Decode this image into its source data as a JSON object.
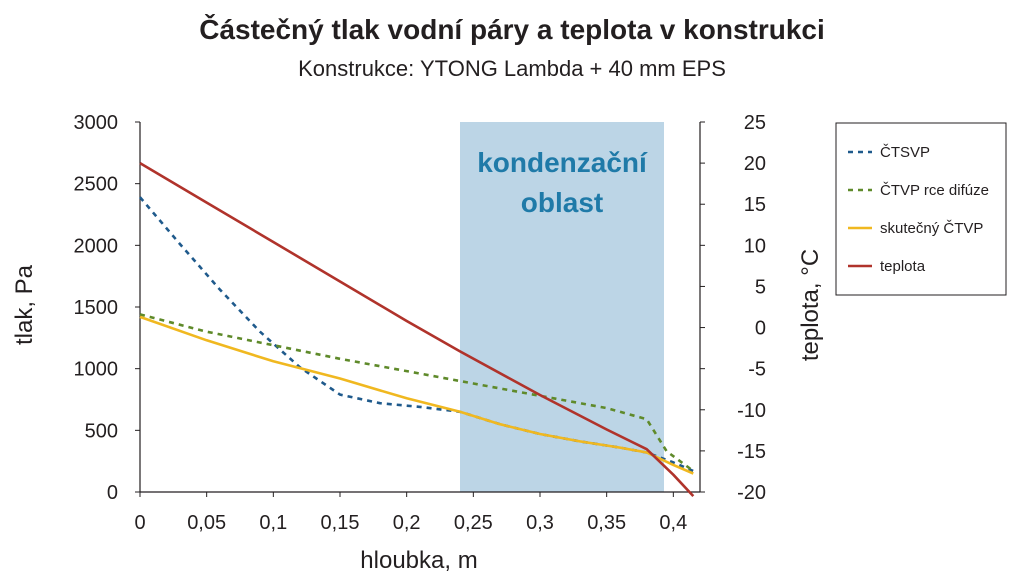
{
  "chart_data": {
    "type": "line",
    "title": "Částečný tlak vodní páry a teplota v konstrukci",
    "subtitle": "Konstrukce: YTONG Lambda + 40 mm EPS",
    "xlabel": "hloubka, m",
    "ylabel_left": "tlak, Pa",
    "ylabel_right": "teplota, °C",
    "xlim": [
      0,
      0.42
    ],
    "ylim_left": [
      0,
      3000
    ],
    "ylim_right": [
      -20,
      25
    ],
    "x_ticks": [
      "0",
      "0,05",
      "0,1",
      "0,15",
      "0,2",
      "0,25",
      "0,3",
      "0,35",
      "0,4"
    ],
    "x_tick_values": [
      0,
      0.05,
      0.1,
      0.15,
      0.2,
      0.25,
      0.3,
      0.35,
      0.4
    ],
    "y_left_ticks": [
      "3000",
      "2500",
      "2000",
      "1500",
      "1000",
      "500",
      "0"
    ],
    "y_left_tick_values": [
      3000,
      2500,
      2000,
      1500,
      1000,
      500,
      0
    ],
    "y_right_ticks": [
      "25",
      "20",
      "15",
      "10",
      "5",
      "0",
      "-5",
      "-10",
      "-15",
      "-20"
    ],
    "y_right_tick_values": [
      25,
      20,
      15,
      10,
      5,
      0,
      -5,
      -10,
      -15,
      -20
    ],
    "grid": false,
    "legend_position": "right",
    "shaded_region": {
      "x_start": 0.24,
      "x_end": 0.393,
      "label_line1": "kondenzační",
      "label_line2": "oblast",
      "color": "#bcd5e6"
    },
    "series": [
      {
        "name": "ČTSVP",
        "axis": "left",
        "style": "dashed",
        "color": "#1f5a8c",
        "x": [
          0,
          0.03,
          0.06,
          0.09,
          0.12,
          0.15,
          0.18,
          0.21,
          0.24,
          0.27,
          0.3,
          0.33,
          0.36,
          0.38,
          0.4,
          0.415
        ],
        "y": [
          2390,
          2010,
          1640,
          1300,
          1010,
          790,
          720,
          690,
          650,
          550,
          470,
          410,
          360,
          320,
          240,
          170
        ]
      },
      {
        "name": "ČTVP rce difúze",
        "axis": "left",
        "style": "dashed",
        "color": "#5f8a2a",
        "x": [
          0,
          0.05,
          0.1,
          0.15,
          0.2,
          0.25,
          0.3,
          0.35,
          0.38,
          0.395,
          0.415
        ],
        "y": [
          1440,
          1300,
          1190,
          1080,
          980,
          880,
          780,
          680,
          590,
          330,
          170
        ]
      },
      {
        "name": "skutečný ČTVP",
        "axis": "left",
        "style": "solid",
        "color": "#f0b820",
        "x": [
          0,
          0.05,
          0.1,
          0.15,
          0.2,
          0.24,
          0.27,
          0.3,
          0.33,
          0.36,
          0.38,
          0.4,
          0.415
        ],
        "y": [
          1420,
          1230,
          1060,
          920,
          760,
          650,
          550,
          470,
          410,
          360,
          320,
          220,
          150
        ]
      },
      {
        "name": "teplota",
        "axis": "right",
        "style": "solid",
        "color": "#b0332b",
        "x": [
          0,
          0.05,
          0.1,
          0.15,
          0.2,
          0.24,
          0.3,
          0.35,
          0.38,
          0.4,
          0.415
        ],
        "y": [
          20,
          15.2,
          10.4,
          5.6,
          0.8,
          -2.9,
          -8.2,
          -12.4,
          -14.8,
          -17.9,
          -20.5
        ]
      }
    ]
  }
}
